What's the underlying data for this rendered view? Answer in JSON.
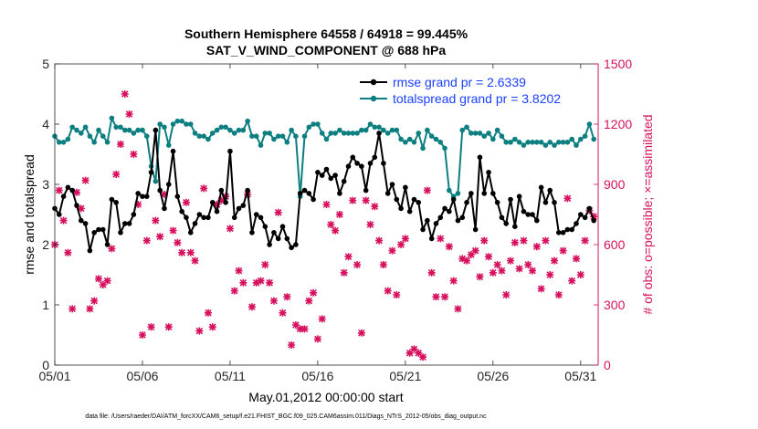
{
  "chart_data": {
    "type": "line",
    "title_line1": "Southern Hemisphere 64558 / 64918 = 99.445%",
    "title_line2": "SAT_V_WIND_COMPONENT @ 688 hPa",
    "xlabel": "May.01,2012 00:00:00 start",
    "ylabel": "rmse and totalspread",
    "ylabel_right": "# of obs: o=possible; ×=assimilated",
    "footnote": "data file: /Users/raeder/DAI/ATM_forcXX/CAM6_setup/f.e21.FHIST_BGC.f09_025.CAM6assim.011/Diags_NTrS_2012-05/obs_diag_output.nc",
    "xlim": [
      0,
      31
    ],
    "ylim": [
      0,
      5
    ],
    "ylim_right": [
      0,
      1500
    ],
    "x_ticks": [
      0,
      5,
      10,
      15,
      20,
      25,
      30
    ],
    "x_tick_labels": [
      "05/01",
      "05/06",
      "05/11",
      "05/16",
      "05/21",
      "05/26",
      "05/31"
    ],
    "y_ticks": [
      0,
      1,
      2,
      3,
      4,
      5
    ],
    "y_tick_labels": [
      "0",
      "1",
      "2",
      "3",
      "4",
      "5"
    ],
    "y_right_ticks": [
      0,
      300,
      600,
      900,
      1200,
      1500
    ],
    "y_right_tick_labels": [
      "0",
      "300",
      "600",
      "900",
      "1200",
      "1500"
    ],
    "colors": {
      "rmse": "#000000",
      "spread": "#0d7f80",
      "obs": "#d6105e",
      "legend_text": "#1a3fff",
      "axis": "#262626"
    },
    "x": [
      0.0,
      0.25,
      0.5,
      0.75,
      1.0,
      1.25,
      1.5,
      1.75,
      2.0,
      2.25,
      2.5,
      2.75,
      3.0,
      3.25,
      3.5,
      3.75,
      4.0,
      4.25,
      4.5,
      4.75,
      5.0,
      5.25,
      5.5,
      5.75,
      6.0,
      6.25,
      6.5,
      6.75,
      7.0,
      7.25,
      7.5,
      7.75,
      8.0,
      8.25,
      8.5,
      8.75,
      9.0,
      9.25,
      9.5,
      9.75,
      10.0,
      10.25,
      10.5,
      10.75,
      11.0,
      11.25,
      11.5,
      11.75,
      12.0,
      12.25,
      12.5,
      12.75,
      13.0,
      13.25,
      13.5,
      13.75,
      14.0,
      14.25,
      14.5,
      14.75,
      15.0,
      15.25,
      15.5,
      15.75,
      16.0,
      16.25,
      16.5,
      16.75,
      17.0,
      17.25,
      17.5,
      17.75,
      18.0,
      18.25,
      18.5,
      18.75,
      19.0,
      19.25,
      19.5,
      19.75,
      20.0,
      20.25,
      20.5,
      20.75,
      21.0,
      21.25,
      21.5,
      21.75,
      22.0,
      22.25,
      22.5,
      22.75,
      23.0,
      23.25,
      23.5,
      23.75,
      24.0,
      24.25,
      24.5,
      24.75,
      25.0,
      25.25,
      25.5,
      25.75,
      26.0,
      26.25,
      26.5,
      26.75,
      27.0,
      27.25,
      27.5,
      27.75,
      28.0,
      28.25,
      28.5,
      28.75,
      29.0,
      29.25,
      29.5,
      29.75,
      30.0,
      30.25,
      30.5,
      30.75
    ],
    "series": [
      {
        "name": "rmse",
        "axis": "left",
        "marker": "circle",
        "legend": "rmse grand pr = 2.6339",
        "values": [
          2.6,
          2.5,
          2.8,
          2.95,
          2.9,
          2.65,
          2.4,
          2.35,
          1.9,
          2.2,
          2.25,
          2.25,
          2.0,
          2.75,
          2.7,
          2.2,
          2.35,
          2.35,
          2.5,
          2.85,
          2.8,
          2.8,
          3.2,
          3.9,
          2.9,
          2.6,
          3.0,
          3.55,
          2.8,
          2.55,
          2.45,
          2.2,
          2.35,
          2.5,
          2.45,
          2.45,
          2.7,
          2.55,
          2.9,
          2.7,
          3.55,
          2.45,
          2.6,
          2.65,
          2.9,
          2.2,
          2.5,
          2.45,
          2.3,
          2.0,
          2.2,
          2.1,
          2.3,
          2.1,
          1.95,
          2.0,
          2.85,
          2.9,
          2.85,
          2.75,
          3.2,
          3.15,
          3.25,
          3.1,
          3.15,
          2.85,
          3.05,
          3.3,
          3.45,
          3.35,
          3.3,
          2.9,
          3.35,
          3.45,
          3.85,
          3.35,
          2.85,
          3.0,
          2.75,
          2.6,
          2.95,
          2.55,
          2.75,
          2.7,
          2.25,
          2.4,
          2.1,
          2.35,
          2.45,
          2.6,
          2.55,
          2.75,
          2.4,
          2.45,
          2.7,
          2.85,
          2.25,
          3.45,
          2.85,
          3.2,
          2.85,
          2.7,
          2.45,
          2.35,
          2.75,
          2.3,
          2.8,
          2.55,
          2.5,
          2.5,
          2.4,
          2.95,
          2.7,
          2.9,
          2.7,
          2.2,
          2.2,
          2.25,
          2.25,
          2.35,
          2.5,
          2.45,
          2.6,
          2.4
        ]
      },
      {
        "name": "totalspread",
        "axis": "left",
        "marker": "circle",
        "legend": "totalspread grand pr = 3.8202",
        "values": [
          3.8,
          3.7,
          3.7,
          3.75,
          3.95,
          3.9,
          3.85,
          3.95,
          3.8,
          3.7,
          3.9,
          3.8,
          3.7,
          4.1,
          3.95,
          3.95,
          3.9,
          3.9,
          3.85,
          3.9,
          3.9,
          3.8,
          3.3,
          3.05,
          4.0,
          3.95,
          3.65,
          4.0,
          4.05,
          4.05,
          4.0,
          4.0,
          3.85,
          3.8,
          3.8,
          3.75,
          3.85,
          3.9,
          3.95,
          3.95,
          3.9,
          3.85,
          3.9,
          3.9,
          4.05,
          3.8,
          3.8,
          3.65,
          3.85,
          3.85,
          3.75,
          3.8,
          3.8,
          3.7,
          3.9,
          3.8,
          2.8,
          3.8,
          3.95,
          4.0,
          4.0,
          3.85,
          3.75,
          3.85,
          3.85,
          3.9,
          3.85,
          3.85,
          3.85,
          3.85,
          3.9,
          3.9,
          4.0,
          3.95,
          3.95,
          3.9,
          3.85,
          3.9,
          3.9,
          3.75,
          3.7,
          3.75,
          3.7,
          3.85,
          3.6,
          3.9,
          3.8,
          3.75,
          3.7,
          3.6,
          2.9,
          2.8,
          2.85,
          3.9,
          3.95,
          3.85,
          3.85,
          3.85,
          3.8,
          3.85,
          3.75,
          3.9,
          3.8,
          3.7,
          3.7,
          3.75,
          3.7,
          3.65,
          3.7,
          3.7,
          3.7,
          3.7,
          3.65,
          3.7,
          3.65,
          3.7,
          3.7,
          3.7,
          3.75,
          3.65,
          3.75,
          3.8,
          4.0,
          3.75
        ]
      },
      {
        "name": "obs_assimilated",
        "axis": "right",
        "marker": "x",
        "values": [
          600,
          870,
          720,
          560,
          280,
          860,
          780,
          920,
          280,
          320,
          430,
          400,
          420,
          580,
          950,
          1100,
          1350,
          1250,
          1050,
          800,
          150,
          620,
          190,
          720,
          640,
          850,
          190,
          670,
          610,
          560,
          810,
          560,
          520,
          170,
          880,
          260,
          190,
          800,
          820,
          840,
          680,
          370,
          470,
          410,
          850,
          290,
          410,
          420,
          500,
          410,
          320,
          760,
          260,
          340,
          100,
          200,
          180,
          180,
          320,
          360,
          130,
          230,
          800,
          700,
          670,
          750,
          460,
          540,
          820,
          500,
          160,
          820,
          700,
          790,
          620,
          500,
          370,
          570,
          350,
          600,
          630,
          60,
          80,
          60,
          40,
          870,
          460,
          340,
          630,
          340,
          590,
          420,
          280,
          530,
          520,
          550,
          570,
          440,
          620,
          540,
          460,
          500,
          470,
          350,
          520,
          610,
          480,
          620,
          500,
          470,
          590,
          380,
          620,
          450,
          520,
          350,
          570,
          830,
          420,
          530,
          450,
          620,
          770,
          740
        ]
      }
    ]
  }
}
